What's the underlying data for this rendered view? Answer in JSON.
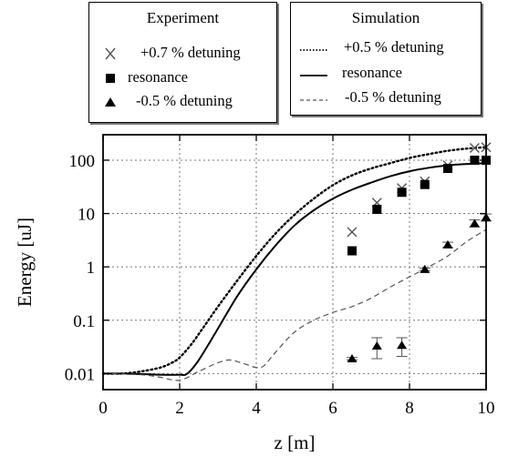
{
  "chart_data": {
    "type": "scatter",
    "xlabel": "z [m]",
    "ylabel": "Energy [uJ]",
    "xlim": [
      0,
      10
    ],
    "ylim": [
      0.005,
      300
    ],
    "yscale": "log",
    "grid": true,
    "xticks": [
      0,
      2,
      4,
      6,
      8,
      10
    ],
    "xtick_labels": [
      "0",
      "2",
      "4",
      "6",
      "8",
      "10"
    ],
    "yticks": [
      0.01,
      0.1,
      1,
      10,
      100
    ],
    "ytick_labels": [
      "0.01",
      "0.1",
      "1",
      "10",
      "100"
    ],
    "legends": [
      {
        "title": "Experiment",
        "position": "top-left",
        "entries": [
          {
            "marker": "x",
            "label": "+0.7 % detuning"
          },
          {
            "marker": "square",
            "label": "resonance"
          },
          {
            "marker": "triangle",
            "label": "-0.5 % detuning"
          }
        ]
      },
      {
        "title": "Simulation",
        "position": "top-right",
        "entries": [
          {
            "line": "dotted",
            "label": "+0.5 % detuning"
          },
          {
            "line": "solid",
            "label": "resonance"
          },
          {
            "line": "dashed",
            "label": "-0.5 % detuning"
          }
        ]
      }
    ],
    "experiment": [
      {
        "label": "+0.7 % detuning",
        "marker": "x",
        "x": [
          6.5,
          7.15,
          7.8,
          8.4,
          9.0,
          9.7,
          10.0
        ],
        "y": [
          4.5,
          16,
          30,
          40,
          80,
          170,
          175
        ]
      },
      {
        "label": "resonance",
        "marker": "square",
        "x": [
          6.5,
          7.15,
          7.8,
          8.4,
          9.0,
          9.7,
          10.0
        ],
        "y": [
          2.0,
          12,
          25,
          35,
          70,
          100,
          100
        ]
      },
      {
        "label": "-0.5 % detuning",
        "marker": "triangle",
        "x": [
          6.5,
          7.15,
          7.8,
          8.4,
          9.0,
          9.7,
          10.0
        ],
        "y": [
          0.019,
          0.033,
          0.034,
          0.9,
          2.6,
          6.5,
          8.5
        ],
        "yerr_low": [
          0.018,
          0.019,
          0.021,
          0.85,
          2.3,
          5.6,
          7.2
        ],
        "yerr_high": [
          0.02,
          0.047,
          0.047,
          0.95,
          2.9,
          7.6,
          9.8
        ]
      }
    ],
    "simulation": [
      {
        "label": "+0.5 % detuning",
        "line": "dotted",
        "x": [
          0,
          0.5,
          1.0,
          1.5,
          1.8,
          2.0,
          2.3,
          2.6,
          3.0,
          3.5,
          4.0,
          4.5,
          5.0,
          5.5,
          6.0,
          6.5,
          7.0,
          7.5,
          8.0,
          8.5,
          9.0,
          9.5,
          10.0
        ],
        "y": [
          0.01,
          0.01,
          0.011,
          0.013,
          0.016,
          0.02,
          0.035,
          0.07,
          0.18,
          0.55,
          1.6,
          4.2,
          9.5,
          19,
          34,
          52,
          70,
          88,
          110,
          130,
          150,
          165,
          175
        ]
      },
      {
        "label": "resonance",
        "line": "solid",
        "x": [
          0,
          0.5,
          1.0,
          1.5,
          2.0,
          2.2,
          2.5,
          3.0,
          3.5,
          4.0,
          4.5,
          5.0,
          5.5,
          6.0,
          6.5,
          7.0,
          7.5,
          8.0,
          8.5,
          9.0,
          9.5,
          10.0
        ],
        "y": [
          0.01,
          0.01,
          0.0098,
          0.0095,
          0.0095,
          0.01,
          0.018,
          0.07,
          0.28,
          0.9,
          2.5,
          6.0,
          11.5,
          19,
          28,
          38,
          50,
          62,
          72,
          80,
          85,
          88
        ]
      },
      {
        "label": "-0.5 % detuning",
        "line": "dashed",
        "x": [
          0,
          1.0,
          1.5,
          2.0,
          2.5,
          3.0,
          3.3,
          3.6,
          4.0,
          4.2,
          4.5,
          5.0,
          5.5,
          6.0,
          6.5,
          7.0,
          7.5,
          8.0,
          8.5,
          9.0,
          9.5,
          10.0
        ],
        "y": [
          0.01,
          0.0095,
          0.0085,
          0.0075,
          0.011,
          0.016,
          0.018,
          0.016,
          0.013,
          0.014,
          0.025,
          0.06,
          0.1,
          0.14,
          0.18,
          0.26,
          0.42,
          0.65,
          1.0,
          1.6,
          3.0,
          5.0
        ]
      }
    ]
  }
}
